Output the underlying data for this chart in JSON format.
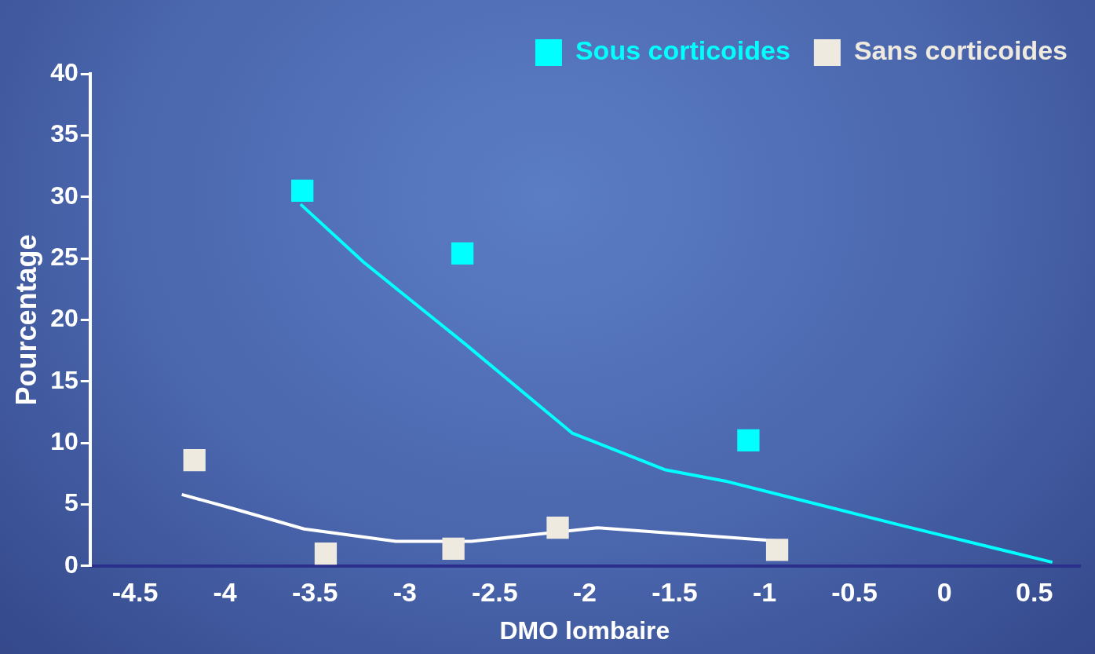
{
  "chart_data": {
    "type": "scatter",
    "xlabel": "DMO lombaire",
    "ylabel": "Pourcentage",
    "xlim": [
      -4.75,
      0.75
    ],
    "xticks": [
      -4.5,
      -4,
      -3.5,
      -3,
      -2.5,
      -2,
      -1.5,
      -1,
      -0.5,
      0,
      0.5
    ],
    "ylim": [
      0,
      40
    ],
    "yticks": [
      0,
      5,
      10,
      15,
      20,
      25,
      30,
      35,
      40
    ],
    "grid": false,
    "legend": "top right",
    "series": [
      {
        "name": "Sous corticoides",
        "color": "#00ffff",
        "marker": "square",
        "x": [
          -3.57,
          -2.68,
          -1.09
        ],
        "values": [
          30.5,
          25.4,
          10.2
        ]
      },
      {
        "name": "Sans corticoides",
        "color": "#eeeae0",
        "marker": "square",
        "x": [
          -4.17,
          -3.44,
          -2.73,
          -2.15,
          -0.93
        ],
        "values": [
          8.6,
          1.0,
          1.4,
          3.1,
          1.3
        ]
      },
      {
        "type": "line",
        "color": "#00ffff",
        "marker": "none",
        "x": [
          -3.58,
          -3.23,
          -2.67,
          -2.07,
          -1.55,
          -1.22,
          -0.24,
          0.6
        ],
        "values": [
          29.4,
          24.7,
          18.1,
          10.8,
          7.8,
          6.9,
          3.3,
          0.3
        ]
      },
      {
        "type": "line",
        "color": "#ffffff",
        "marker": "none",
        "x": [
          -4.24,
          -3.94,
          -3.56,
          -3.05,
          -2.63,
          -1.93,
          -0.9
        ],
        "values": [
          5.8,
          4.6,
          3.0,
          2.0,
          2.0,
          3.1,
          2.0
        ]
      }
    ]
  }
}
